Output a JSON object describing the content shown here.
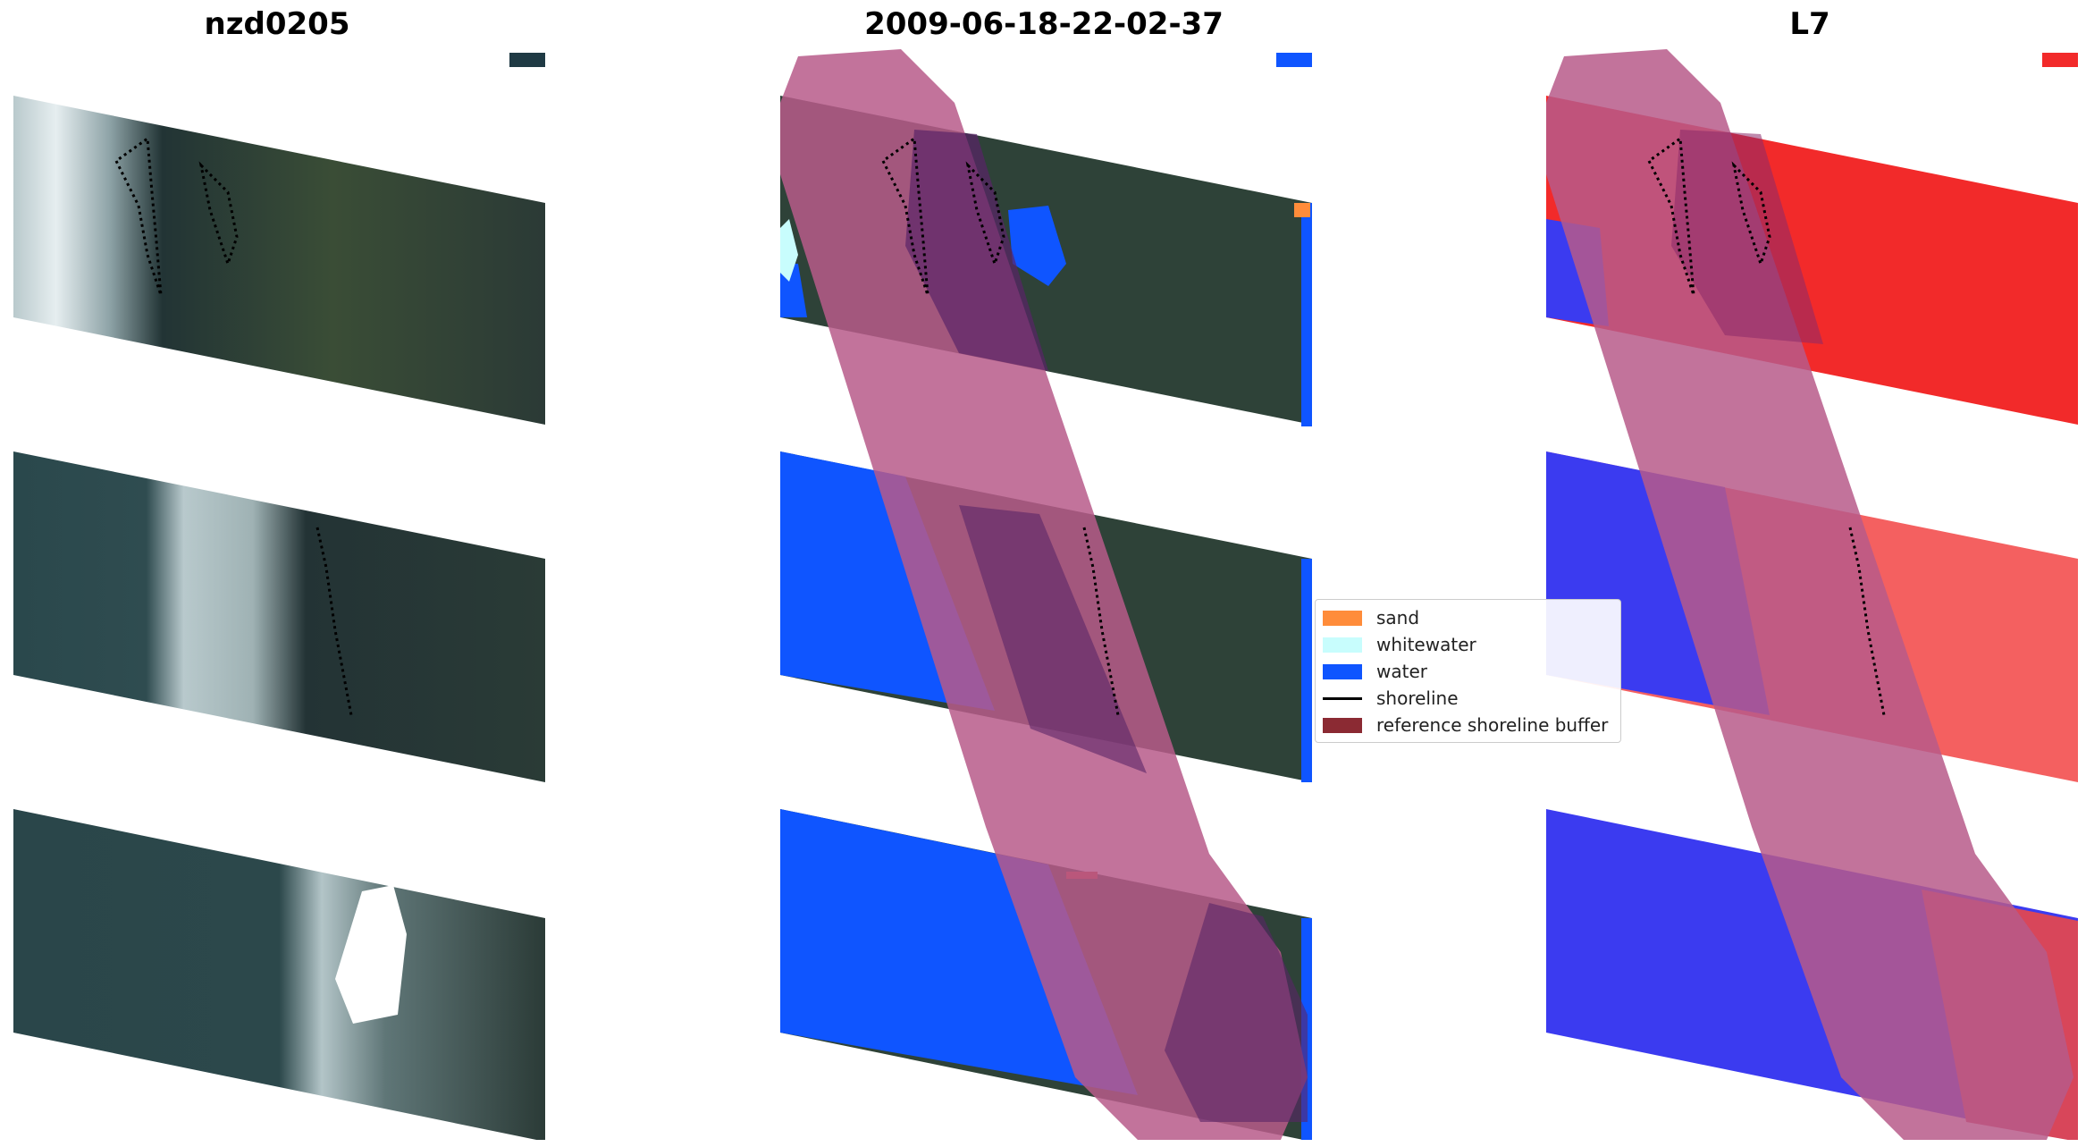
{
  "titles": {
    "site": "nzd0205",
    "date": "2009-06-18-22-02-37",
    "satellite": "L7"
  },
  "legend": {
    "items": [
      {
        "label": "sand",
        "kind": "patch",
        "color": "#ff8c3a"
      },
      {
        "label": "whitewater",
        "kind": "patch",
        "color": "#c8fdfd"
      },
      {
        "label": "water",
        "kind": "patch",
        "color": "#0f55ff"
      },
      {
        "label": "shoreline",
        "kind": "line",
        "color": "#000000"
      },
      {
        "label": "reference shoreline buffer",
        "kind": "patch",
        "color": "#8b2a33"
      }
    ]
  },
  "colors": {
    "ocean": "#27444a",
    "land": "#2e3f34",
    "surf": "#c9d8d8",
    "water_class": "#0f55ff",
    "ndwi_water": "#3b3bf0",
    "ndwi_land": "#f22a2a",
    "buffer": "#b75a8a"
  }
}
